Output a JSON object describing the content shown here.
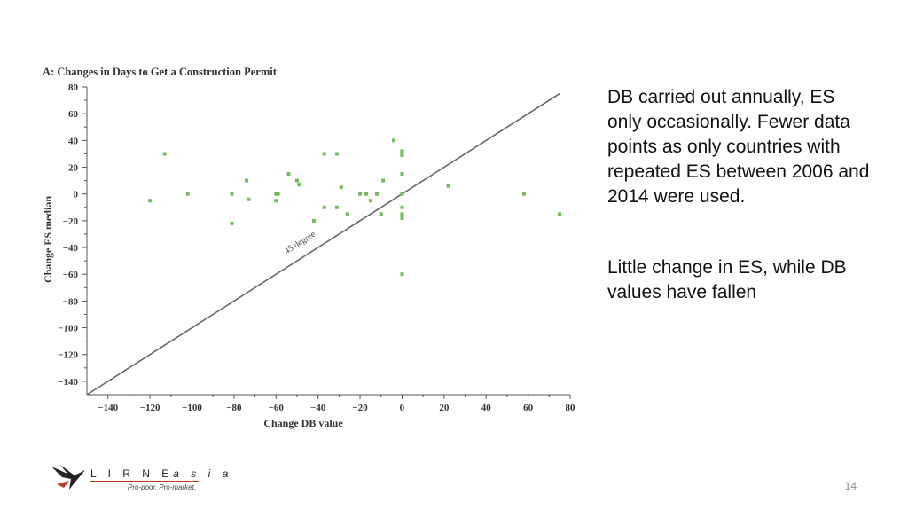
{
  "chart_data": {
    "type": "scatter",
    "title": "A: Changes in Days to Get a Construction Permit",
    "xlabel": "Change DB value",
    "ylabel": "Change ES median",
    "xlim": [
      -150,
      80
    ],
    "ylim": [
      -150,
      80
    ],
    "x_ticks": [
      -140,
      -120,
      -100,
      -80,
      -60,
      -40,
      -20,
      0,
      20,
      40,
      60,
      80
    ],
    "y_ticks": [
      80,
      60,
      40,
      20,
      0,
      -20,
      -40,
      -60,
      -80,
      -100,
      -120,
      -140
    ],
    "reference_line": {
      "label": "45 degree",
      "slope": 1,
      "intercept": 0
    },
    "point_color": "#74b95a",
    "points": [
      {
        "x": -120,
        "y": -5
      },
      {
        "x": -113,
        "y": 30
      },
      {
        "x": -102,
        "y": 0
      },
      {
        "x": -81,
        "y": 0
      },
      {
        "x": -81,
        "y": -22
      },
      {
        "x": -74,
        "y": 10
      },
      {
        "x": -73,
        "y": -4
      },
      {
        "x": -60,
        "y": 0
      },
      {
        "x": -59,
        "y": 0
      },
      {
        "x": -60,
        "y": -5
      },
      {
        "x": -54,
        "y": 15
      },
      {
        "x": -50,
        "y": 10
      },
      {
        "x": -49,
        "y": 7
      },
      {
        "x": -42,
        "y": -20
      },
      {
        "x": -37,
        "y": 30
      },
      {
        "x": -37,
        "y": -10
      },
      {
        "x": -31,
        "y": 30
      },
      {
        "x": -31,
        "y": -10
      },
      {
        "x": -29,
        "y": 5
      },
      {
        "x": -26,
        "y": -15
      },
      {
        "x": -20,
        "y": 0
      },
      {
        "x": -17,
        "y": 0
      },
      {
        "x": -15,
        "y": -5
      },
      {
        "x": -12,
        "y": 0
      },
      {
        "x": -10,
        "y": -15
      },
      {
        "x": -9,
        "y": 10
      },
      {
        "x": -4,
        "y": 40
      },
      {
        "x": 0,
        "y": 32
      },
      {
        "x": 0,
        "y": 29
      },
      {
        "x": 0,
        "y": 15
      },
      {
        "x": 0,
        "y": 0
      },
      {
        "x": 0,
        "y": -10
      },
      {
        "x": 0,
        "y": -15
      },
      {
        "x": 0,
        "y": -18
      },
      {
        "x": 0,
        "y": -60
      },
      {
        "x": 22,
        "y": 6
      },
      {
        "x": 58,
        "y": 0
      },
      {
        "x": 75,
        "y": -15
      }
    ]
  },
  "notes": {
    "note1": "DB carried out annually, ES only occasionally. Fewer data points as only countries with repeated ES between 2006 and 2014 were used.",
    "note2": "Little change in ES, while DB values have fallen"
  },
  "logo": {
    "wordmark": "L I R N E",
    "wordmark_suffix": "a s i a",
    "tagline": "Pro-poor. Pro-market.",
    "accent_color": "#c0392b"
  },
  "page_number": "14"
}
